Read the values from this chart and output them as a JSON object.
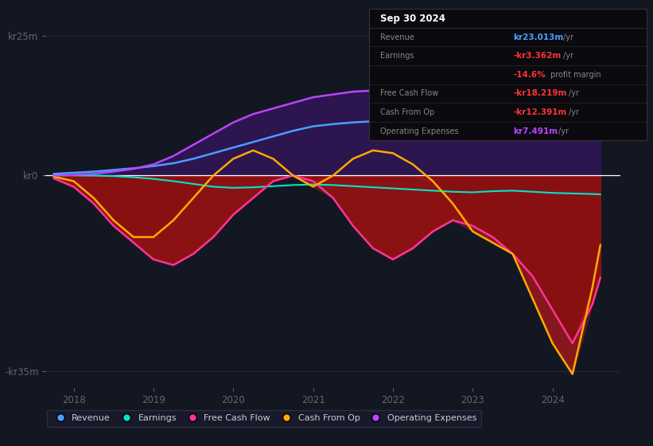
{
  "bg_color": "#131722",
  "plot_bg": "#131722",
  "grid_color": "#2a2e39",
  "zero_line_color": "#ffffff",
  "yticks": [
    25000000,
    0,
    -35000000
  ],
  "ytick_labels": [
    "kr25m",
    "kr0",
    "-kr35m"
  ],
  "xtick_labels": [
    "2018",
    "2019",
    "2020",
    "2021",
    "2022",
    "2023",
    "2024"
  ],
  "legend": [
    {
      "label": "Revenue",
      "color": "#4a9eff"
    },
    {
      "label": "Earnings",
      "color": "#00e5c8"
    },
    {
      "label": "Free Cash Flow",
      "color": "#ff3399"
    },
    {
      "label": "Cash From Op",
      "color": "#ffaa00"
    },
    {
      "label": "Operating Expenses",
      "color": "#bb44ff"
    }
  ],
  "info_box": {
    "date": "Sep 30 2024",
    "rows": [
      {
        "label": "Revenue",
        "value": "kr23.013m",
        "unit": "/yr",
        "value_color": "#4a9eff"
      },
      {
        "label": "Earnings",
        "value": "-kr3.362m",
        "unit": "/yr",
        "value_color": "#ff3333"
      },
      {
        "label": "",
        "value": "-14.6%",
        "unit": " profit margin",
        "value_color": "#ff3333"
      },
      {
        "label": "Free Cash Flow",
        "value": "-kr18.219m",
        "unit": "/yr",
        "value_color": "#ff3333"
      },
      {
        "label": "Cash From Op",
        "value": "-kr12.391m",
        "unit": "/yr",
        "value_color": "#ff3333"
      },
      {
        "label": "Operating Expenses",
        "value": "kr7.491m",
        "unit": "/yr",
        "value_color": "#bb44ff"
      }
    ]
  },
  "series": {
    "x": [
      2017.75,
      2018.0,
      2018.25,
      2018.5,
      2018.75,
      2019.0,
      2019.25,
      2019.5,
      2019.75,
      2020.0,
      2020.25,
      2020.5,
      2020.75,
      2021.0,
      2021.25,
      2021.5,
      2021.75,
      2022.0,
      2022.25,
      2022.5,
      2022.75,
      2023.0,
      2023.25,
      2023.5,
      2023.75,
      2024.0,
      2024.25,
      2024.5,
      2024.6
    ],
    "revenue": [
      300000,
      500000,
      700000,
      1000000,
      1300000,
      1700000,
      2200000,
      3000000,
      4000000,
      5000000,
      6000000,
      7000000,
      8000000,
      8800000,
      9200000,
      9500000,
      9700000,
      9800000,
      9600000,
      9500000,
      9600000,
      9700000,
      9900000,
      10300000,
      11000000,
      12500000,
      15000000,
      19000000,
      23013000
    ],
    "earnings": [
      100000,
      50000,
      0,
      -100000,
      -300000,
      -600000,
      -1000000,
      -1500000,
      -2000000,
      -2200000,
      -2100000,
      -1900000,
      -1700000,
      -1600000,
      -1700000,
      -1900000,
      -2100000,
      -2300000,
      -2500000,
      -2700000,
      -2900000,
      -3000000,
      -2800000,
      -2700000,
      -2900000,
      -3100000,
      -3200000,
      -3300000,
      -3362000
    ],
    "free_cash_flow": [
      -500000,
      -2000000,
      -5000000,
      -9000000,
      -12000000,
      -15000000,
      -16000000,
      -14000000,
      -11000000,
      -7000000,
      -4000000,
      -1000000,
      0,
      -1000000,
      -4000000,
      -9000000,
      -13000000,
      -15000000,
      -13000000,
      -10000000,
      -8000000,
      -9000000,
      -11000000,
      -14000000,
      -18000000,
      -24000000,
      -30000000,
      -23000000,
      -18219000
    ],
    "cash_from_op": [
      -200000,
      -1000000,
      -4000000,
      -8000000,
      -11000000,
      -11000000,
      -8000000,
      -4000000,
      0,
      3000000,
      4500000,
      3000000,
      0,
      -2000000,
      0,
      3000000,
      4500000,
      4000000,
      2000000,
      -1000000,
      -5000000,
      -10000000,
      -12000000,
      -14000000,
      -22000000,
      -30000000,
      -35500000,
      -20000000,
      -12391000
    ],
    "op_expenses": [
      0,
      100000,
      300000,
      700000,
      1200000,
      2000000,
      3500000,
      5500000,
      7500000,
      9500000,
      11000000,
      12000000,
      13000000,
      14000000,
      14500000,
      15000000,
      15200000,
      15000000,
      14500000,
      13500000,
      12500000,
      11500000,
      10500000,
      9500000,
      9000000,
      8500000,
      8000000,
      7700000,
      7491000
    ]
  }
}
